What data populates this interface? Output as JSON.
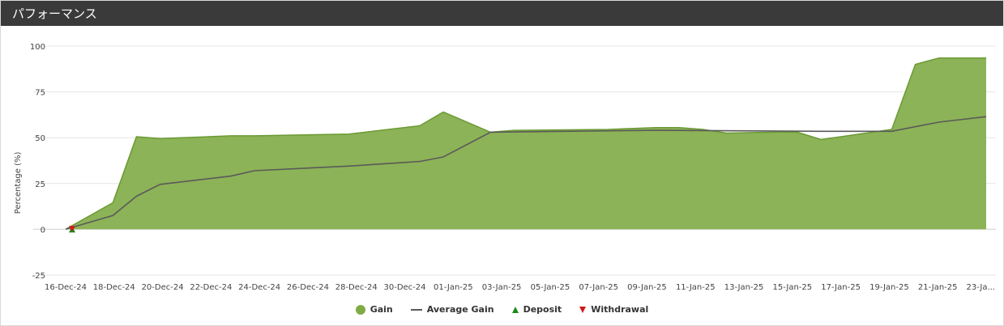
{
  "header": {
    "title": "パフォーマンス"
  },
  "colors": {
    "gain": "#7fab45",
    "gain_line": "#6b9a34",
    "average": "#5a5a5a",
    "deposit": "#1a8a1a",
    "withdrawal": "#d01818",
    "grid": "#e6e6e6"
  },
  "chart_data": {
    "type": "area",
    "title": "",
    "xlabel": "",
    "ylabel": "Percentage (%)",
    "ylim": [
      -25,
      100
    ],
    "yticks": [
      -25,
      0,
      25,
      50,
      75,
      100
    ],
    "xlim": [
      "2024-12-16",
      "2025-01-24"
    ],
    "xticks": [
      "16-Dec-24",
      "18-Dec-24",
      "20-Dec-24",
      "22-Dec-24",
      "24-Dec-24",
      "26-Dec-24",
      "28-Dec-24",
      "30-Dec-24",
      "01-Jan-25",
      "03-Jan-25",
      "05-Jan-25",
      "07-Jan-25",
      "09-Jan-25",
      "11-Jan-25",
      "13-Jan-25",
      "15-Jan-25",
      "17-Jan-25",
      "19-Jan-25",
      "21-Jan-25",
      "23-Ja..."
    ],
    "grid": "horizontal",
    "legend_position": "bottom",
    "series": [
      {
        "name": "Gain",
        "kind": "area",
        "x": [
          "2024-12-16",
          "2024-12-18",
          "2024-12-19",
          "2024-12-20",
          "2024-12-23",
          "2024-12-24",
          "2024-12-28",
          "2024-12-31",
          "2025-01-01",
          "2025-01-03",
          "2025-01-04",
          "2025-01-08",
          "2025-01-10",
          "2025-01-11",
          "2025-01-12",
          "2025-01-13",
          "2025-01-15",
          "2025-01-16",
          "2025-01-17",
          "2025-01-20",
          "2025-01-21",
          "2025-01-22",
          "2025-01-23",
          "2025-01-24"
        ],
        "values": [
          0,
          14.5,
          50.5,
          49.5,
          51,
          51,
          52,
          56.5,
          64,
          53,
          54,
          54.5,
          55.5,
          55.5,
          54.5,
          52.5,
          53,
          53,
          49,
          54.5,
          90,
          93.5,
          93.5,
          93.5
        ]
      },
      {
        "name": "Average Gain",
        "kind": "line",
        "x": [
          "2024-12-16",
          "2024-12-18",
          "2024-12-19",
          "2024-12-20",
          "2024-12-23",
          "2024-12-24",
          "2024-12-28",
          "2024-12-31",
          "2025-01-01",
          "2025-01-03",
          "2025-01-10",
          "2025-01-17",
          "2025-01-20",
          "2025-01-22",
          "2025-01-24"
        ],
        "values": [
          0,
          7.5,
          18,
          24.5,
          29,
          32,
          34.5,
          37,
          39.5,
          53,
          54,
          53.5,
          53.5,
          58.5,
          61.5
        ]
      }
    ],
    "markers": [
      {
        "name": "Deposit",
        "shape": "triangle-up",
        "x": "2024-12-16",
        "value": 0
      },
      {
        "name": "Withdrawal",
        "shape": "triangle-down",
        "x": "2024-12-16",
        "value": 0
      }
    ]
  }
}
